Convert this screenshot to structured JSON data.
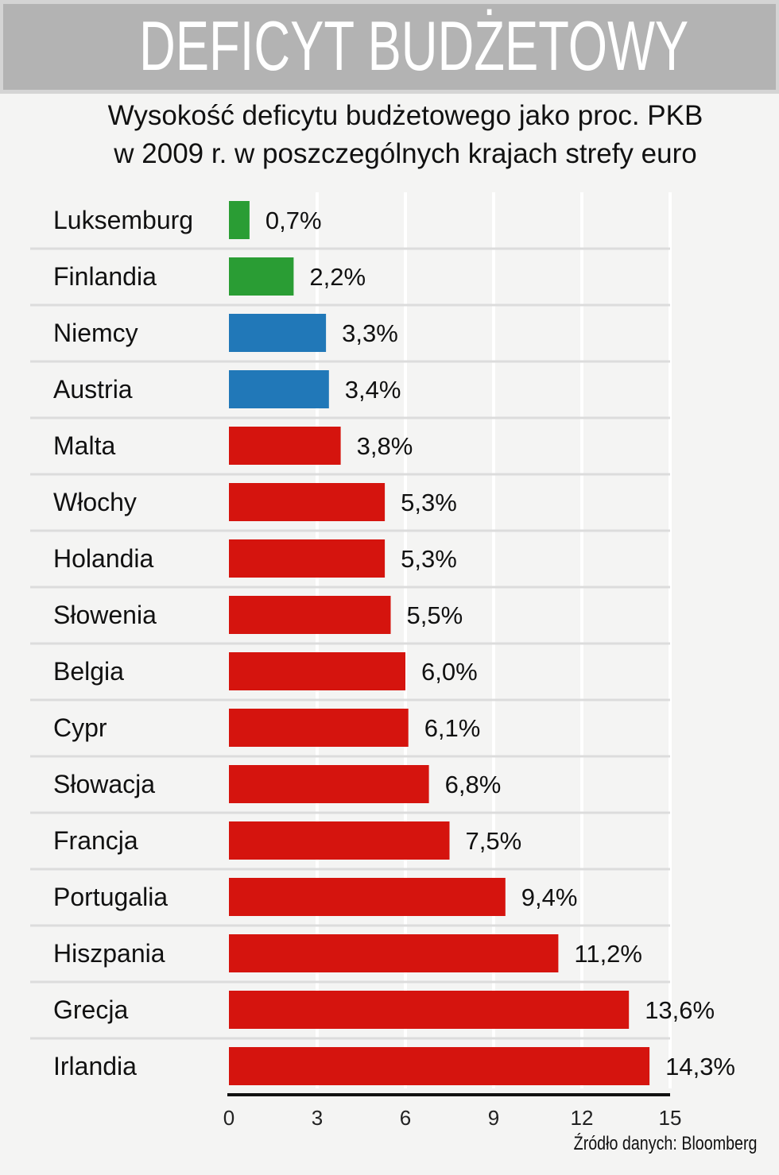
{
  "header": {
    "title": "DEFICYT BUDŻETOWY"
  },
  "subtitle": [
    "Wysokość deficytu budżetowego jako proc. PKB",
    "w 2009 r. w poszczególnych krajach strefy euro"
  ],
  "source": "Źródło danych: Bloomberg",
  "colors": {
    "green": "#2a9d34",
    "blue": "#2178b8",
    "red": "#d5140e",
    "background": "#f4f4f3",
    "header": "#b3b3b3"
  },
  "chart_data": {
    "type": "bar",
    "orientation": "horizontal",
    "categories": [
      "Luksemburg",
      "Finlandia",
      "Niemcy",
      "Austria",
      "Malta",
      "Włochy",
      "Holandia",
      "Słowenia",
      "Belgia",
      "Cypr",
      "Słowacja",
      "Francja",
      "Portugalia",
      "Hiszpania",
      "Grecja",
      "Irlandia"
    ],
    "values": [
      0.7,
      2.2,
      3.3,
      3.4,
      3.8,
      5.3,
      5.3,
      5.5,
      6.0,
      6.1,
      6.8,
      7.5,
      9.4,
      11.2,
      13.6,
      14.3
    ],
    "data_labels": [
      "0,7%",
      "2,2%",
      "3,3%",
      "3,4%",
      "3,8%",
      "5,3%",
      "5,3%",
      "5,5%",
      "6,0%",
      "6,1%",
      "6,8%",
      "7,5%",
      "9,4%",
      "11,2%",
      "13,6%",
      "14,3%"
    ],
    "bar_colors": [
      "green",
      "green",
      "blue",
      "blue",
      "red",
      "red",
      "red",
      "red",
      "red",
      "red",
      "red",
      "red",
      "red",
      "red",
      "red",
      "red"
    ],
    "xlim": [
      0,
      15
    ],
    "xticks": [
      "0",
      "3",
      "6",
      "9",
      "12",
      "15"
    ],
    "grid": true
  }
}
